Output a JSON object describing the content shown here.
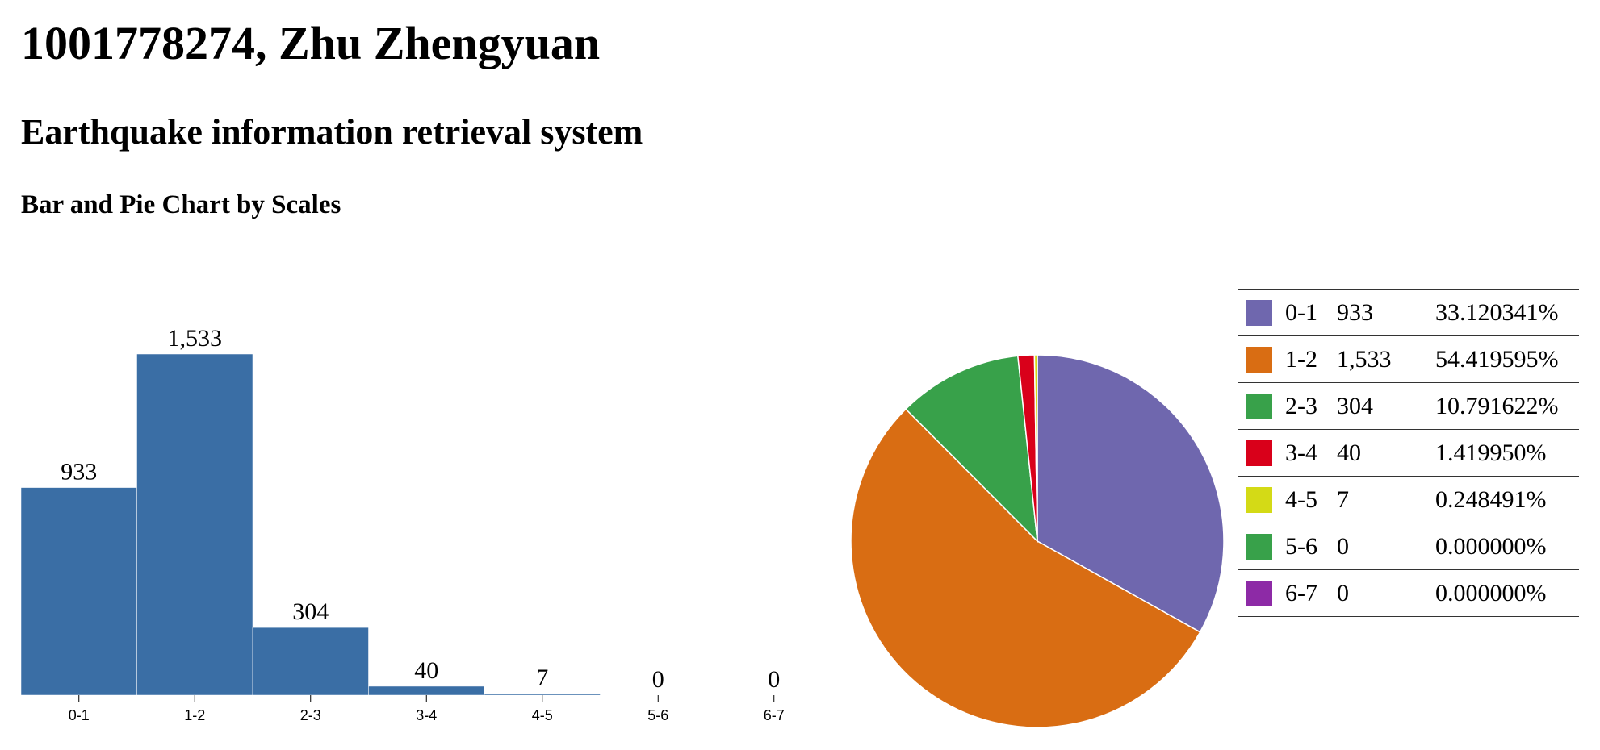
{
  "header": {
    "title": "1001778274, Zhu Zhengyuan",
    "subtitle": "Earthquake information retrieval system",
    "section_title": "Bar and Pie Chart by Scales"
  },
  "chart_data": [
    {
      "type": "bar",
      "categories": [
        "0-1",
        "1-2",
        "2-3",
        "3-4",
        "4-5",
        "5-6",
        "6-7"
      ],
      "values": [
        933,
        1533,
        304,
        40,
        7,
        0,
        0
      ],
      "value_labels": [
        "933",
        "1,533",
        "304",
        "40",
        "7",
        "0",
        "0"
      ],
      "title": "",
      "xlabel": "",
      "ylabel": "",
      "ylim": [
        0,
        1533
      ],
      "grid": false,
      "color": "#3a6ea5"
    },
    {
      "type": "pie",
      "categories": [
        "0-1",
        "1-2",
        "2-3",
        "3-4",
        "4-5",
        "5-6",
        "6-7"
      ],
      "values": [
        933,
        1533,
        304,
        40,
        7,
        0,
        0
      ],
      "colors": [
        "#6f67ae",
        "#d96d13",
        "#38a14a",
        "#d9001a",
        "#d4da16",
        "#38a14a",
        "#8d2aa6"
      ],
      "legend": {
        "placement": "right",
        "rows": [
          {
            "range": "0-1",
            "count": "933",
            "percent": "33.120341%"
          },
          {
            "range": "1-2",
            "count": "1,533",
            "percent": "54.419595%"
          },
          {
            "range": "2-3",
            "count": "304",
            "percent": "10.791622%"
          },
          {
            "range": "3-4",
            "count": "40",
            "percent": "1.419950%"
          },
          {
            "range": "4-5",
            "count": "7",
            "percent": "0.248491%"
          },
          {
            "range": "5-6",
            "count": "0",
            "percent": "0.000000%"
          },
          {
            "range": "6-7",
            "count": "0",
            "percent": "0.000000%"
          }
        ]
      }
    }
  ]
}
